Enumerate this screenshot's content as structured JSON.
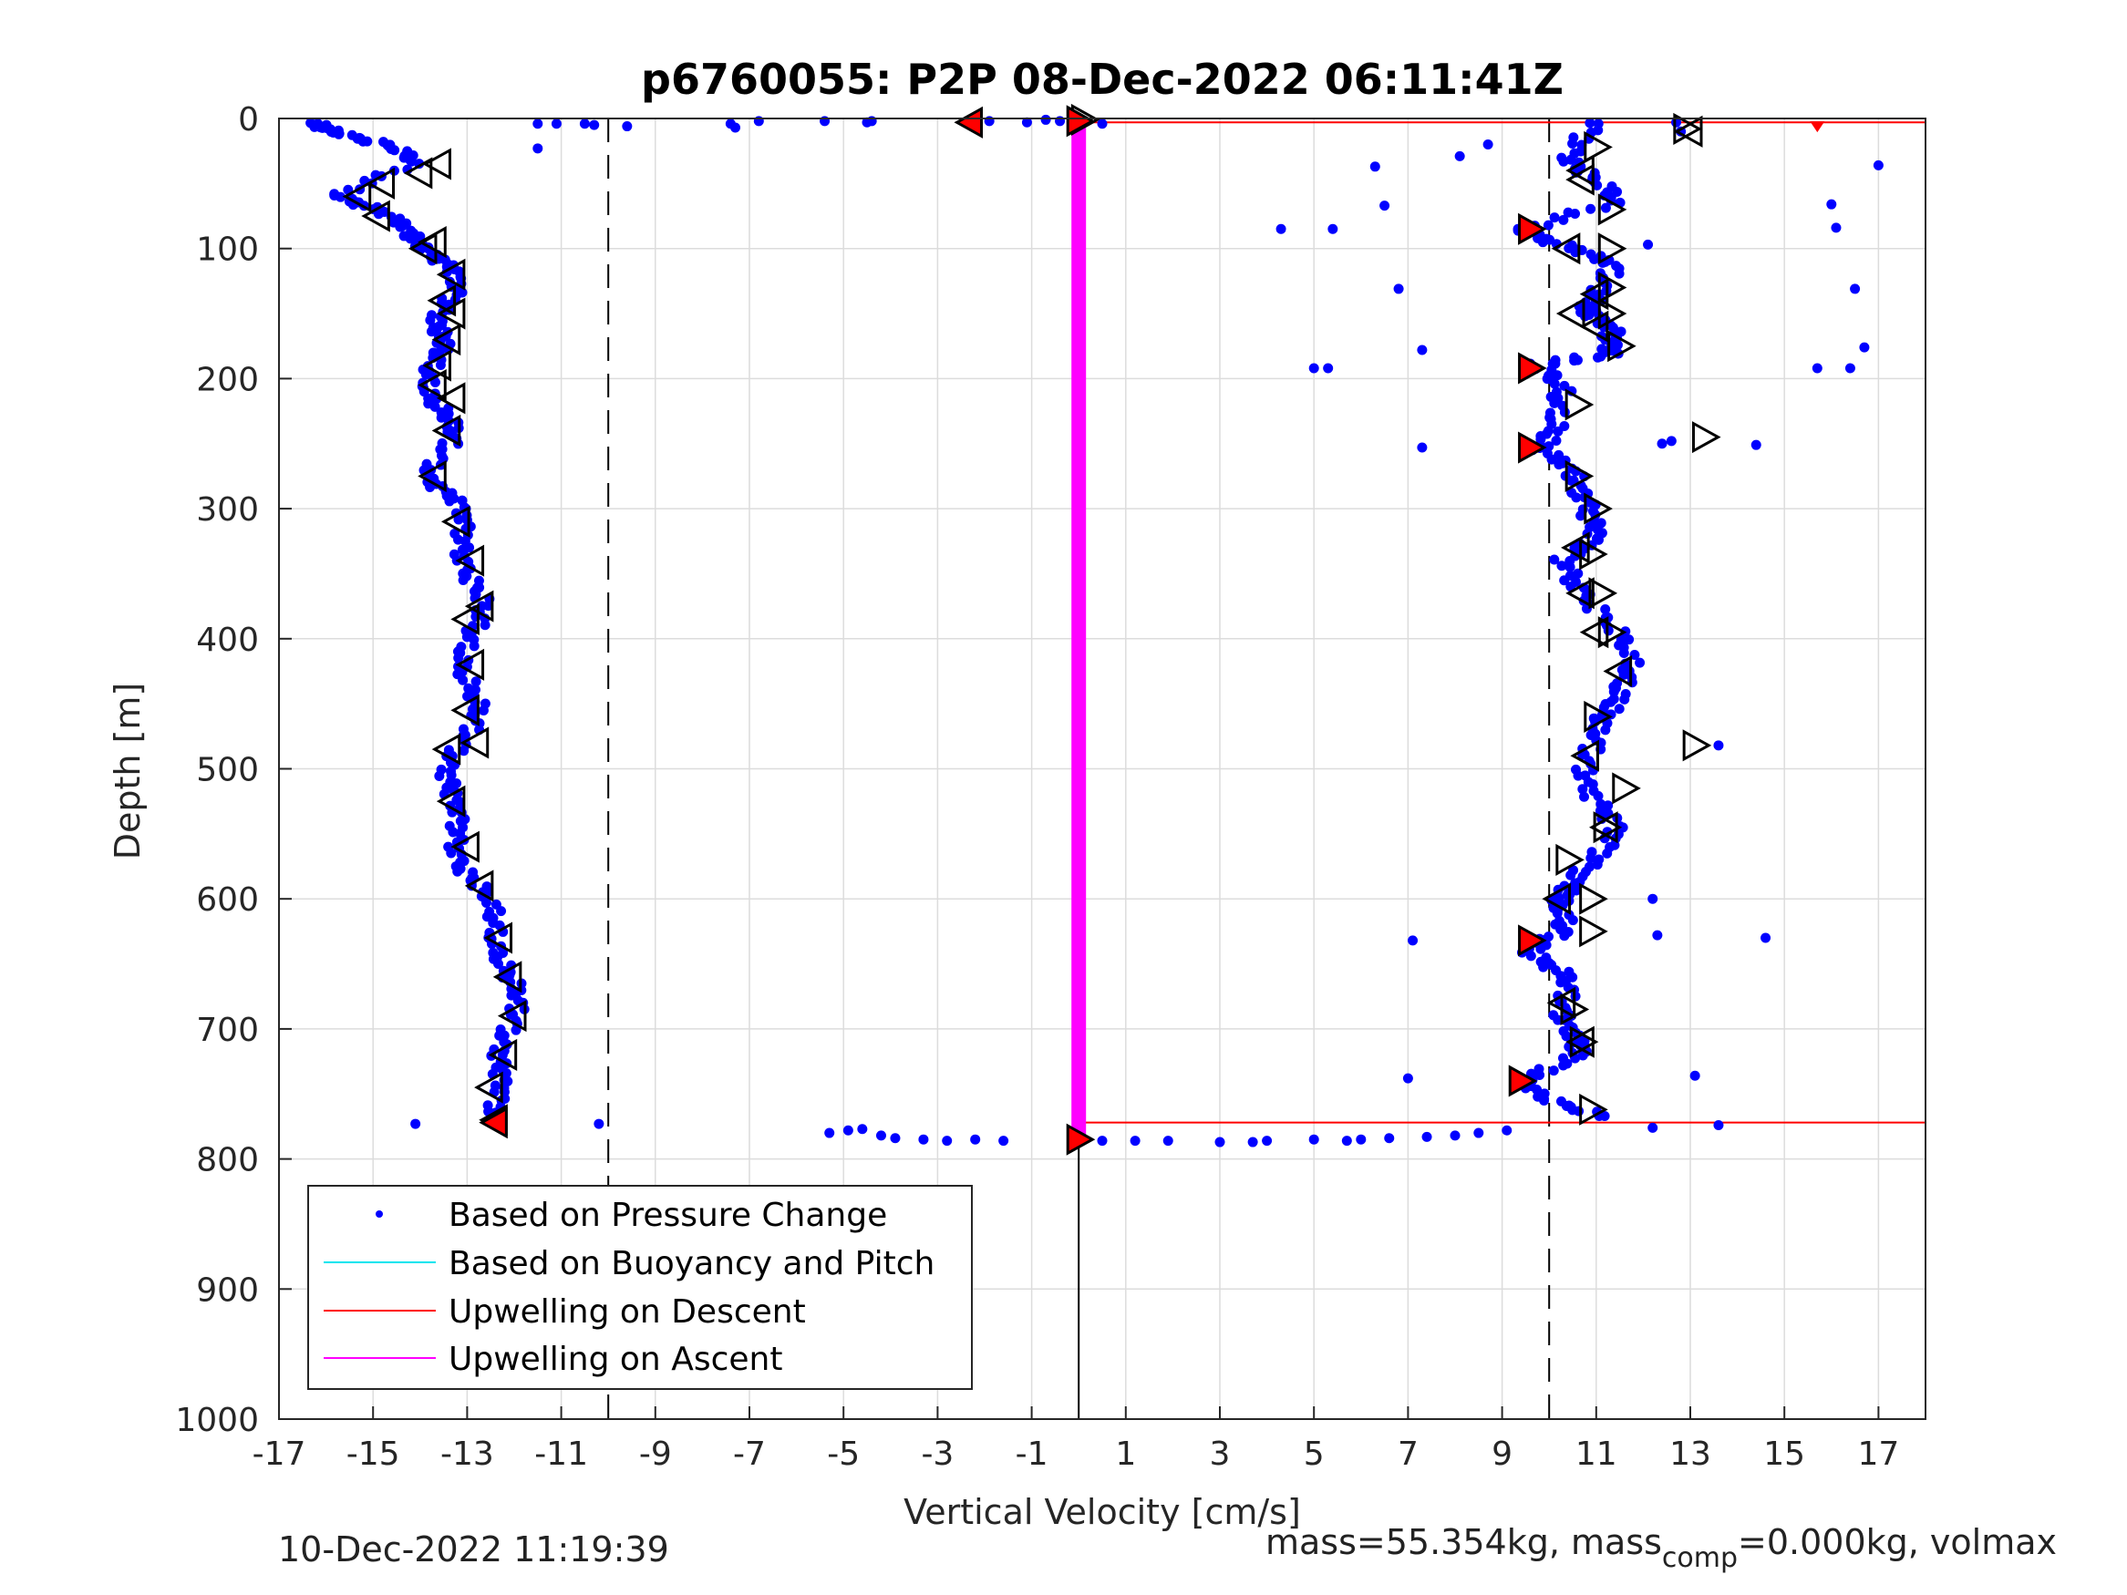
{
  "title": "p6760055: P2P 08-Dec-2022 06:11:41Z",
  "footer": {
    "timestamp": "10-Dec-2022 11:19:39",
    "mass_prefix": "mass=55.354kg, mass",
    "mass_sub": "comp",
    "mass_suffix": "=0.000kg, volmax"
  },
  "colors": {
    "pressure": "#0000ff",
    "buoyancy": "#00e5ee",
    "descent": "#ff0000",
    "ascent": "#ff00ff",
    "grid": "#dcdcdc",
    "marker_fill_red": "#ff0000"
  },
  "chart_data": {
    "type": "scatter",
    "title": "p6760055: P2P 08-Dec-2022 06:11:41Z",
    "xlabel": "Vertical Velocity [cm/s]",
    "ylabel": "Depth [m]",
    "xlim": [
      -17,
      18
    ],
    "ylim": [
      0,
      1000
    ],
    "y_reversed": true,
    "xticks": [
      -17,
      -15,
      -13,
      -11,
      -9,
      -7,
      -5,
      -3,
      -1,
      1,
      3,
      5,
      7,
      9,
      11,
      13,
      15,
      17
    ],
    "yticks": [
      0,
      100,
      200,
      300,
      400,
      500,
      600,
      700,
      800,
      900,
      1000
    ],
    "grid": true,
    "legend_position": "bottom-left",
    "legend": [
      {
        "label": "Based on Pressure Change",
        "kind": "dot",
        "color": "#0000ff"
      },
      {
        "label": "Based on Buoyancy and Pitch",
        "kind": "line",
        "color": "#00e5ee"
      },
      {
        "label": "Upwelling on Descent",
        "kind": "line",
        "color": "#ff0000"
      },
      {
        "label": "Upwelling on Ascent",
        "kind": "line",
        "color": "#ff00ff"
      }
    ],
    "reference_lines": [
      {
        "x": -10,
        "style": "dashed"
      },
      {
        "x": 10,
        "style": "dashed"
      },
      {
        "x": 0,
        "style": "solid",
        "y_from": 785,
        "y_to": 1000
      }
    ],
    "series": [
      {
        "name": "Based on Pressure Change",
        "descent_profile": [
          [
            -16.3,
            5
          ],
          [
            -15.6,
            10
          ],
          [
            -14.8,
            20
          ],
          [
            -14.2,
            35
          ],
          [
            -15.6,
            58
          ],
          [
            -15.0,
            70
          ],
          [
            -14.3,
            88
          ],
          [
            -13.7,
            100
          ],
          [
            -13.4,
            115
          ],
          [
            -13.3,
            135
          ],
          [
            -13.5,
            155
          ],
          [
            -13.6,
            170
          ],
          [
            -13.8,
            190
          ],
          [
            -13.7,
            210
          ],
          [
            -13.5,
            230
          ],
          [
            -13.4,
            250
          ],
          [
            -13.7,
            275
          ],
          [
            -13.3,
            295
          ],
          [
            -13.1,
            320
          ],
          [
            -12.9,
            345
          ],
          [
            -12.8,
            370
          ],
          [
            -12.9,
            395
          ],
          [
            -13.0,
            420
          ],
          [
            -12.9,
            450
          ],
          [
            -13.0,
            475
          ],
          [
            -13.3,
            500
          ],
          [
            -13.4,
            525
          ],
          [
            -13.2,
            550
          ],
          [
            -13.0,
            575
          ],
          [
            -12.8,
            595
          ],
          [
            -12.4,
            620
          ],
          [
            -12.2,
            645
          ],
          [
            -12.1,
            670
          ],
          [
            -12.0,
            695
          ],
          [
            -12.2,
            720
          ],
          [
            -12.4,
            745
          ],
          [
            -12.5,
            770
          ]
        ],
        "ascent_profile": [
          [
            10.9,
            5
          ],
          [
            10.6,
            30
          ],
          [
            10.8,
            45
          ],
          [
            11.3,
            65
          ],
          [
            9.6,
            85
          ],
          [
            10.4,
            100
          ],
          [
            11.3,
            115
          ],
          [
            11.2,
            135
          ],
          [
            10.7,
            150
          ],
          [
            11.3,
            165
          ],
          [
            11.5,
            180
          ],
          [
            9.6,
            190
          ],
          [
            10.2,
            210
          ],
          [
            10.3,
            235
          ],
          [
            9.7,
            255
          ],
          [
            10.5,
            275
          ],
          [
            11.0,
            295
          ],
          [
            10.9,
            320
          ],
          [
            10.3,
            340
          ],
          [
            10.9,
            365
          ],
          [
            11.3,
            395
          ],
          [
            11.7,
            425
          ],
          [
            11.6,
            445
          ],
          [
            10.9,
            465
          ],
          [
            10.8,
            490
          ],
          [
            11.0,
            515
          ],
          [
            11.3,
            545
          ],
          [
            11.0,
            570
          ],
          [
            10.6,
            590
          ],
          [
            10.0,
            605
          ],
          [
            10.3,
            625
          ],
          [
            9.7,
            640
          ],
          [
            10.2,
            660
          ],
          [
            10.3,
            685
          ],
          [
            10.7,
            705
          ],
          [
            10.5,
            720
          ],
          [
            9.5,
            740
          ],
          [
            10.2,
            755
          ],
          [
            11.1,
            770
          ]
        ],
        "surface_points": [
          [
            -10.5,
            4
          ],
          [
            -11.5,
            4
          ],
          [
            -9.6,
            6
          ],
          [
            -7.4,
            4
          ],
          [
            -7.3,
            7
          ],
          [
            -6.8,
            2
          ],
          [
            -5.4,
            2
          ],
          [
            -4.4,
            2
          ],
          [
            -4.5,
            3
          ],
          [
            -2.4,
            3
          ],
          [
            -1.9,
            2
          ],
          [
            -1.1,
            3
          ],
          [
            -0.7,
            1
          ],
          [
            -0.4,
            2
          ],
          [
            -0.1,
            1
          ],
          [
            0.5,
            4
          ],
          [
            -11.5,
            23
          ],
          [
            -11.1,
            4
          ],
          [
            -10.3,
            5
          ]
        ],
        "bottom_points": [
          [
            -5.3,
            780
          ],
          [
            -4.9,
            778
          ],
          [
            -4.6,
            777
          ],
          [
            -4.2,
            782
          ],
          [
            -3.9,
            784
          ],
          [
            -3.3,
            785
          ],
          [
            -2.8,
            786
          ],
          [
            -2.2,
            785
          ],
          [
            -1.6,
            786
          ],
          [
            0.5,
            786
          ],
          [
            1.2,
            786
          ],
          [
            1.9,
            786
          ],
          [
            3.0,
            787
          ],
          [
            3.7,
            787
          ],
          [
            4.0,
            786
          ],
          [
            5.0,
            785
          ],
          [
            5.7,
            786
          ],
          [
            6.0,
            785
          ],
          [
            6.6,
            784
          ],
          [
            7.4,
            783
          ],
          [
            8.0,
            782
          ],
          [
            8.5,
            780
          ],
          [
            9.1,
            778
          ],
          [
            -14.1,
            773
          ],
          [
            -10.2,
            773
          ],
          [
            12.2,
            776
          ],
          [
            13.6,
            774
          ]
        ],
        "outliers": [
          [
            6.3,
            37
          ],
          [
            6.5,
            67
          ],
          [
            8.1,
            29
          ],
          [
            8.7,
            20
          ],
          [
            4.3,
            85
          ],
          [
            5.4,
            85
          ],
          [
            6.8,
            131
          ],
          [
            7.3,
            178
          ],
          [
            5.0,
            192
          ],
          [
            5.3,
            192
          ],
          [
            7.3,
            253
          ],
          [
            17.0,
            36
          ],
          [
            16.0,
            66
          ],
          [
            16.1,
            84
          ],
          [
            16.5,
            131
          ],
          [
            16.7,
            176
          ],
          [
            15.7,
            192
          ],
          [
            16.4,
            192
          ],
          [
            14.4,
            251
          ],
          [
            14.6,
            630
          ],
          [
            12.2,
            600
          ],
          [
            12.3,
            628
          ],
          [
            7.1,
            632
          ],
          [
            7.0,
            738
          ],
          [
            13.1,
            736
          ],
          [
            13.6,
            482
          ],
          [
            12.4,
            250
          ],
          [
            12.6,
            248
          ],
          [
            12.1,
            97
          ],
          [
            12.7,
            3
          ],
          [
            12.8,
            10
          ]
        ]
      }
    ],
    "markers": {
      "descent_outline": [
        [
          -15.3,
          60
        ],
        [
          -14.8,
          50
        ],
        [
          -14.0,
          42
        ],
        [
          -13.6,
          35
        ],
        [
          -14.9,
          75
        ],
        [
          -13.9,
          100
        ],
        [
          -13.7,
          95
        ],
        [
          -13.3,
          120
        ],
        [
          -13.5,
          140
        ],
        [
          -13.3,
          150
        ],
        [
          -13.4,
          170
        ],
        [
          -13.6,
          190
        ],
        [
          -13.7,
          205
        ],
        [
          -13.3,
          215
        ],
        [
          -13.4,
          240
        ],
        [
          -13.7,
          275
        ],
        [
          -13.2,
          310
        ],
        [
          -12.9,
          340
        ],
        [
          -13.0,
          385
        ],
        [
          -12.7,
          375
        ],
        [
          -12.9,
          420
        ],
        [
          -13.0,
          455
        ],
        [
          -12.8,
          480
        ],
        [
          -13.4,
          485
        ],
        [
          -13.3,
          525
        ],
        [
          -13.0,
          560
        ],
        [
          -12.7,
          590
        ],
        [
          -12.3,
          630
        ],
        [
          -12.1,
          660
        ],
        [
          -12.0,
          690
        ],
        [
          -12.2,
          720
        ],
        [
          -12.5,
          745
        ],
        [
          -12.4,
          770
        ]
      ],
      "descent_red": [
        [
          -12.4,
          772
        ],
        [
          -2.3,
          3
        ]
      ],
      "ascent_outline_left": [
        [
          13.0,
          10
        ],
        [
          10.7,
          47
        ],
        [
          10.4,
          100
        ],
        [
          11.0,
          135
        ],
        [
          10.5,
          150
        ],
        [
          11.0,
          160
        ],
        [
          10.6,
          330
        ],
        [
          10.7,
          365
        ],
        [
          11.0,
          395
        ],
        [
          11.5,
          425
        ],
        [
          10.8,
          490
        ],
        [
          11.2,
          545
        ],
        [
          10.2,
          600
        ],
        [
          10.3,
          680
        ],
        [
          10.7,
          710
        ],
        [
          10.7,
          40
        ]
      ],
      "ascent_outline_right": [
        [
          11.0,
          22
        ],
        [
          11.3,
          70
        ],
        [
          11.3,
          100
        ],
        [
          11.3,
          130
        ],
        [
          11.3,
          150
        ],
        [
          11.5,
          175
        ],
        [
          10.6,
          220
        ],
        [
          13.3,
          245
        ],
        [
          10.6,
          275
        ],
        [
          11.0,
          300
        ],
        [
          10.9,
          335
        ],
        [
          11.1,
          365
        ],
        [
          11.3,
          395
        ],
        [
          11.0,
          460
        ],
        [
          13.1,
          482
        ],
        [
          11.6,
          515
        ],
        [
          11.2,
          545
        ],
        [
          10.4,
          570
        ],
        [
          10.9,
          600
        ],
        [
          10.9,
          625
        ],
        [
          10.5,
          685
        ],
        [
          10.7,
          710
        ],
        [
          10.9,
          762
        ],
        [
          12.9,
          8
        ],
        [
          0.1,
          1
        ]
      ],
      "ascent_red": [
        [
          9.6,
          85
        ],
        [
          9.6,
          192
        ],
        [
          9.6,
          253
        ],
        [
          9.6,
          632
        ],
        [
          9.4,
          740
        ],
        [
          0.0,
          2
        ],
        [
          0.0,
          785
        ]
      ]
    },
    "descent_upwelling_lines": [
      {
        "from": [
          0.0,
          3
        ],
        "to": [
          18.0,
          3
        ],
        "label_at_end": [
          15.7,
          5
        ]
      },
      {
        "from": [
          0.0,
          772
        ],
        "to": [
          18.0,
          772
        ]
      }
    ],
    "ascent_upwelling_line": {
      "x": 0.0,
      "y_from": 0,
      "y_to": 785
    }
  }
}
